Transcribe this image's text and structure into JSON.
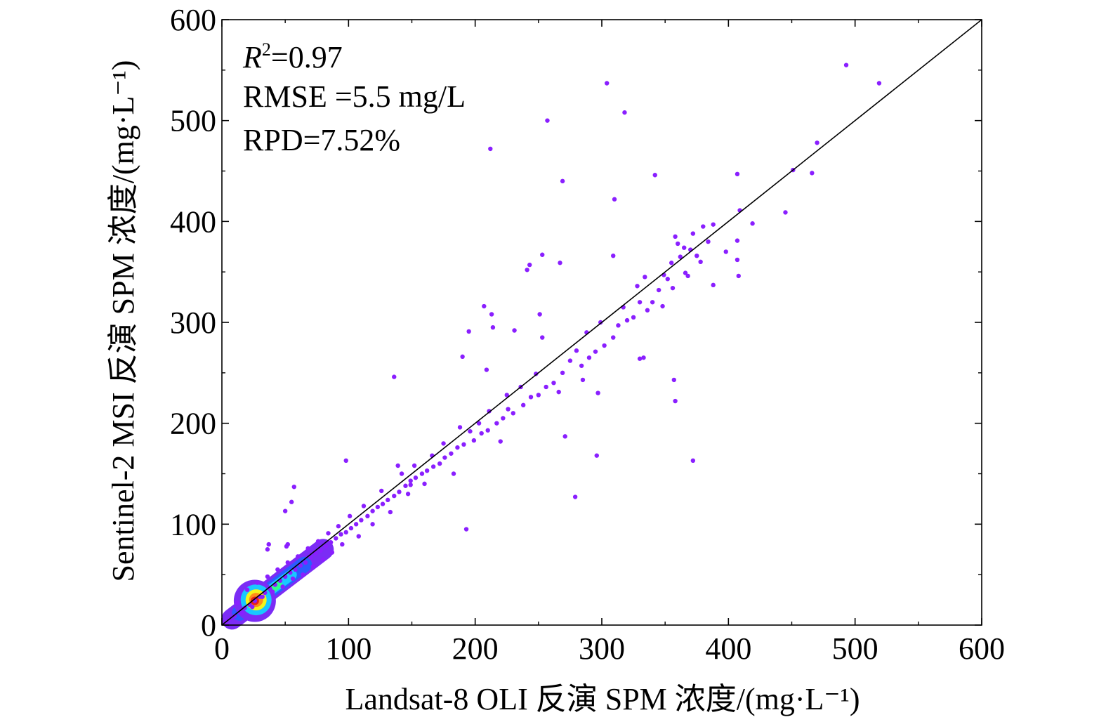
{
  "chart_data": {
    "type": "scatter",
    "xlabel": "Landsat-8 OLI 反演 SPM 浓度/(mg·L⁻¹)",
    "ylabel": "Sentinel-2 MSI 反演 SPM 浓度/(mg·L⁻¹)",
    "xlim": [
      0,
      600
    ],
    "ylim": [
      0,
      600
    ],
    "x_ticks": [
      "0",
      "100",
      "200",
      "300",
      "400",
      "500",
      "600"
    ],
    "y_ticks": [
      "0",
      "100",
      "200",
      "300",
      "400",
      "500",
      "600"
    ],
    "grid": false,
    "reference_line": {
      "name": "1:1",
      "x": [
        0,
        600
      ],
      "y": [
        0,
        600
      ],
      "color": "#000000"
    },
    "stats": {
      "r2_symbol": "R",
      "r2_sup": "2",
      "r2_value": "=0.97",
      "rmse": "RMSE =5.5 mg/L",
      "rpd": "RPD=7.52%"
    },
    "point_color": "#8a1fff",
    "density_colors": [
      "#7b2cf5",
      "#2b5cff",
      "#19c8ff",
      "#2eff8e",
      "#f4f41c",
      "#ff8c1a",
      "#e8201a"
    ],
    "points": [
      [
        493,
        555
      ],
      [
        519,
        537
      ],
      [
        304,
        537
      ],
      [
        318,
        508
      ],
      [
        257,
        500
      ],
      [
        212,
        472
      ],
      [
        470,
        478
      ],
      [
        451,
        451
      ],
      [
        466,
        448
      ],
      [
        407,
        447
      ],
      [
        342,
        446
      ],
      [
        269,
        440
      ],
      [
        310,
        422
      ],
      [
        409,
        411
      ],
      [
        445,
        409
      ],
      [
        419,
        398
      ],
      [
        253,
        367
      ],
      [
        267,
        359
      ],
      [
        241,
        352
      ],
      [
        243,
        357
      ],
      [
        309,
        366
      ],
      [
        398,
        370
      ],
      [
        407,
        381
      ],
      [
        407,
        362
      ],
      [
        408,
        346
      ],
      [
        388,
        337
      ],
      [
        372,
        163
      ],
      [
        357,
        243
      ],
      [
        358,
        222
      ],
      [
        330,
        264
      ],
      [
        333,
        265
      ],
      [
        296,
        168
      ],
      [
        271,
        187
      ],
      [
        279,
        127
      ],
      [
        193,
        95
      ],
      [
        297,
        230
      ],
      [
        207,
        316
      ],
      [
        213,
        308
      ],
      [
        195,
        291
      ],
      [
        214,
        295
      ],
      [
        231,
        292
      ],
      [
        251,
        308
      ],
      [
        253,
        285
      ],
      [
        190,
        266
      ],
      [
        209,
        253
      ],
      [
        136,
        246
      ],
      [
        98,
        163
      ],
      [
        139,
        158
      ],
      [
        149,
        143
      ],
      [
        57,
        137
      ],
      [
        55,
        122
      ],
      [
        50,
        113
      ],
      [
        52,
        80
      ],
      [
        51,
        78
      ],
      [
        37,
        80
      ],
      [
        36,
        75
      ],
      [
        370,
        372
      ],
      [
        355,
        359
      ],
      [
        362,
        365
      ],
      [
        372,
        388
      ],
      [
        384,
        380
      ],
      [
        378,
        360
      ],
      [
        366,
        349
      ],
      [
        352,
        343
      ],
      [
        345,
        332
      ],
      [
        340,
        320
      ],
      [
        330,
        320
      ],
      [
        325,
        305
      ],
      [
        320,
        302
      ],
      [
        313,
        297
      ],
      [
        309,
        285
      ],
      [
        302,
        277
      ],
      [
        295,
        271
      ],
      [
        290,
        265
      ],
      [
        284,
        257
      ],
      [
        280,
        272
      ],
      [
        275,
        262
      ],
      [
        269,
        250
      ],
      [
        262,
        240
      ],
      [
        256,
        236
      ],
      [
        250,
        228
      ],
      [
        244,
        226
      ],
      [
        238,
        218
      ],
      [
        230,
        210
      ],
      [
        226,
        214
      ],
      [
        222,
        205
      ],
      [
        217,
        200
      ],
      [
        210,
        193
      ],
      [
        205,
        190
      ],
      [
        199,
        183
      ],
      [
        196,
        192
      ],
      [
        191,
        179
      ],
      [
        186,
        176
      ],
      [
        181,
        170
      ],
      [
        176,
        166
      ],
      [
        172,
        160
      ],
      [
        167,
        157
      ],
      [
        162,
        153
      ],
      [
        158,
        150
      ],
      [
        153,
        146
      ],
      [
        149,
        139
      ],
      [
        145,
        138
      ],
      [
        140,
        132
      ],
      [
        136,
        128
      ],
      [
        131,
        124
      ],
      [
        127,
        120
      ],
      [
        123,
        117
      ],
      [
        119,
        113
      ],
      [
        115,
        108
      ],
      [
        110,
        104
      ],
      [
        106,
        100
      ],
      [
        102,
        96
      ],
      [
        98,
        92
      ],
      [
        94,
        90
      ],
      [
        90,
        86
      ],
      [
        86,
        82
      ],
      [
        82,
        78
      ],
      [
        78,
        74
      ],
      [
        74,
        71
      ],
      [
        70,
        67
      ],
      [
        66,
        62
      ],
      [
        62,
        59
      ],
      [
        58,
        55
      ],
      [
        54,
        52
      ],
      [
        50,
        48
      ],
      [
        46,
        44
      ],
      [
        42,
        40
      ],
      [
        38,
        36
      ],
      [
        34,
        32
      ],
      [
        30,
        28
      ],
      [
        26,
        24
      ],
      [
        22,
        20
      ],
      [
        18,
        17
      ],
      [
        14,
        13
      ],
      [
        10,
        9
      ],
      [
        6,
        6
      ],
      [
        3,
        3
      ],
      [
        380,
        395
      ],
      [
        388,
        397
      ],
      [
        358,
        385
      ],
      [
        360,
        378
      ],
      [
        365,
        374
      ],
      [
        375,
        366
      ],
      [
        368,
        346
      ],
      [
        356,
        334
      ],
      [
        349,
        347
      ],
      [
        334,
        345
      ],
      [
        328,
        336
      ],
      [
        336,
        312
      ],
      [
        348,
        316
      ],
      [
        317,
        315
      ],
      [
        299,
        300
      ],
      [
        288,
        290
      ],
      [
        285,
        243
      ],
      [
        266,
        231
      ],
      [
        248,
        249
      ],
      [
        236,
        236
      ],
      [
        225,
        228
      ],
      [
        220,
        182
      ],
      [
        211,
        212
      ],
      [
        203,
        200
      ],
      [
        188,
        196
      ],
      [
        183,
        150
      ],
      [
        175,
        180
      ],
      [
        166,
        168
      ],
      [
        160,
        140
      ],
      [
        152,
        158
      ],
      [
        147,
        130
      ],
      [
        142,
        150
      ],
      [
        133,
        112
      ],
      [
        126,
        133
      ],
      [
        119,
        100
      ],
      [
        112,
        118
      ],
      [
        108,
        88
      ],
      [
        101,
        108
      ],
      [
        95,
        80
      ],
      [
        92,
        98
      ],
      [
        87,
        72
      ],
      [
        84,
        91
      ],
      [
        80,
        65
      ],
      [
        76,
        83
      ],
      [
        72,
        58
      ],
      [
        68,
        76
      ],
      [
        64,
        50
      ],
      [
        60,
        68
      ],
      [
        56,
        46
      ],
      [
        52,
        62
      ],
      [
        48,
        38
      ],
      [
        44,
        55
      ],
      [
        40,
        33
      ],
      [
        36,
        48
      ],
      [
        32,
        28
      ],
      [
        28,
        42
      ],
      [
        24,
        18
      ],
      [
        20,
        35
      ],
      [
        16,
        12
      ],
      [
        12,
        22
      ]
    ]
  }
}
